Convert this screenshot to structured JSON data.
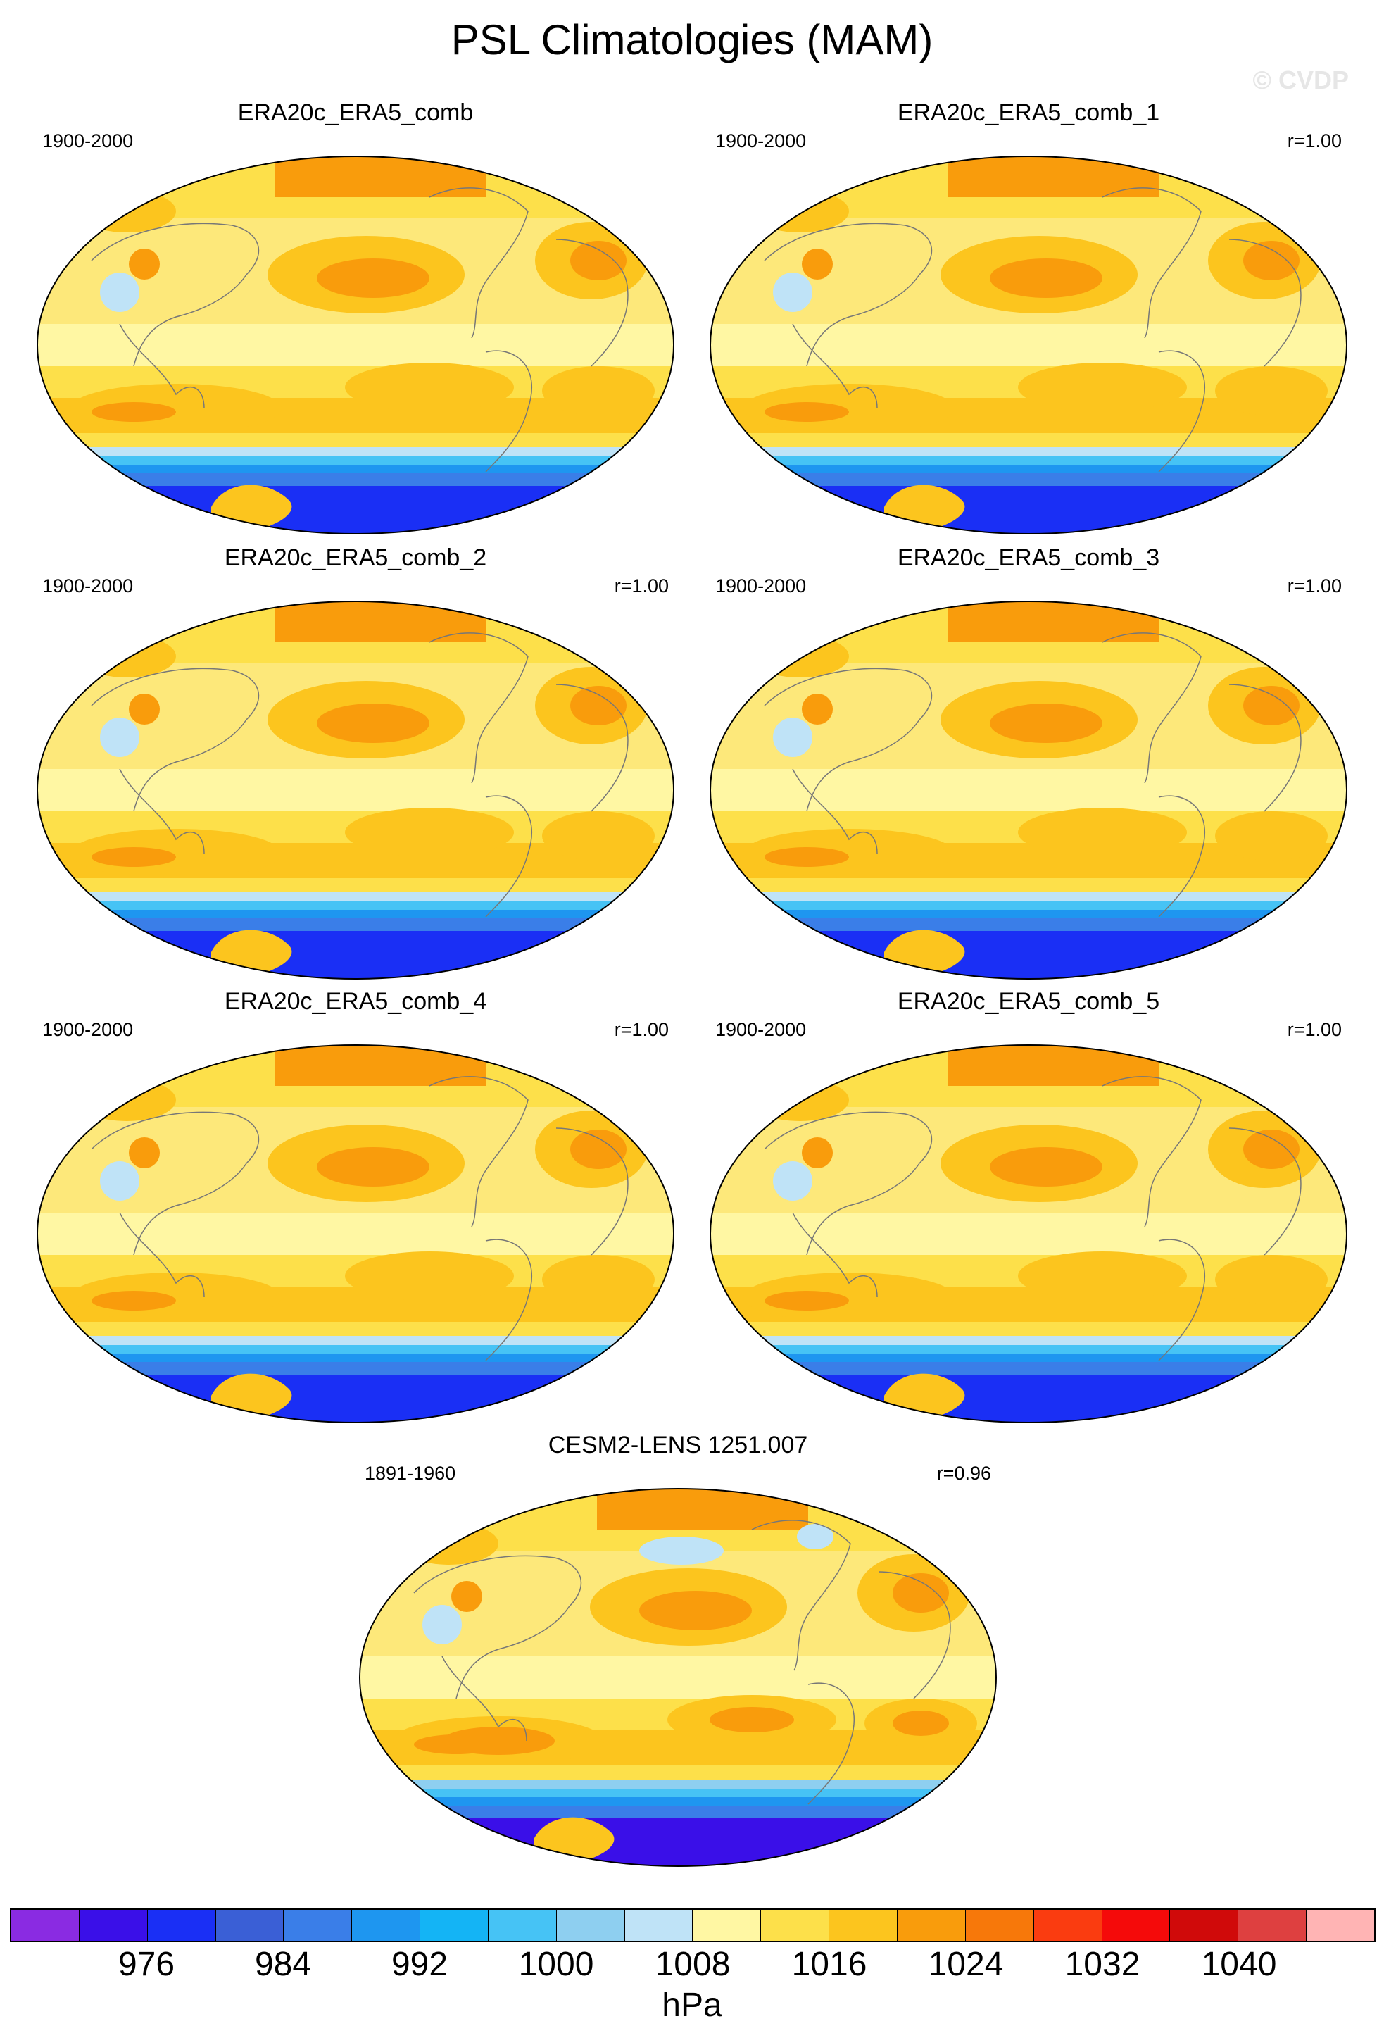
{
  "title": "PSL Climatologies (MAM)",
  "watermark": "© CVDP",
  "panels": [
    {
      "title": "ERA20c_ERA5_comb",
      "period": "1900-2000",
      "corr": "",
      "variant": "obs"
    },
    {
      "title": "ERA20c_ERA5_comb_1",
      "period": "1900-2000",
      "corr": "r=1.00",
      "variant": "obs"
    },
    {
      "title": "ERA20c_ERA5_comb_2",
      "period": "1900-2000",
      "corr": "r=1.00",
      "variant": "obs"
    },
    {
      "title": "ERA20c_ERA5_comb_3",
      "period": "1900-2000",
      "corr": "r=1.00",
      "variant": "obs"
    },
    {
      "title": "ERA20c_ERA5_comb_4",
      "period": "1900-2000",
      "corr": "r=1.00",
      "variant": "obs"
    },
    {
      "title": "ERA20c_ERA5_comb_5",
      "period": "1900-2000",
      "corr": "r=1.00",
      "variant": "obs"
    },
    {
      "title": "CESM2-LENS 1251.007",
      "period": "1891-1960",
      "corr": "r=0.96",
      "variant": "model"
    }
  ],
  "colorbar": {
    "units": "hPa",
    "colors": [
      "#8a2be2",
      "#3a0fe8",
      "#1a2ff5",
      "#3a5fd6",
      "#3a7ee8",
      "#1e96f0",
      "#14b4f5",
      "#46c3f5",
      "#8ecff0",
      "#bfe3f7",
      "#fff7a3",
      "#fde04a",
      "#fcc51e",
      "#f99c0c",
      "#f7780a",
      "#fa3c10",
      "#f50a0a",
      "#d00a0a",
      "#de4040",
      "#ffb4b4"
    ],
    "tick_labels": [
      "976",
      "984",
      "992",
      "1000",
      "1008",
      "1016",
      "1024",
      "1032",
      "1040"
    ],
    "tick_boundary_index": [
      2,
      4,
      6,
      8,
      10,
      12,
      14,
      16,
      18
    ]
  }
}
